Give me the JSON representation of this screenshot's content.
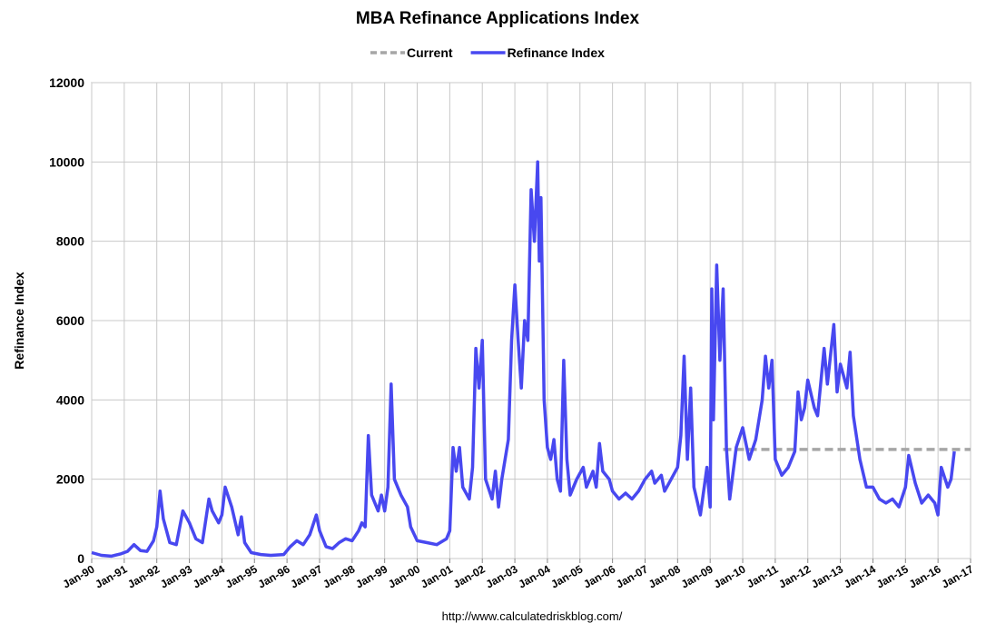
{
  "chart_data": {
    "type": "line",
    "title": "MBA Refinance Applications Index",
    "y_label": "Refinance Index",
    "source": "http://www.calculatedriskblog.com/",
    "xlim": [
      1990,
      2017
    ],
    "ylim": [
      0,
      12000
    ],
    "yticks": [
      0,
      2000,
      4000,
      6000,
      8000,
      10000,
      12000
    ],
    "xticks": [
      {
        "value": 1990,
        "label": "Jan-90"
      },
      {
        "value": 1991,
        "label": "Jan-91"
      },
      {
        "value": 1992,
        "label": "Jan-92"
      },
      {
        "value": 1993,
        "label": "Jan-93"
      },
      {
        "value": 1994,
        "label": "Jan-94"
      },
      {
        "value": 1995,
        "label": "Jan-95"
      },
      {
        "value": 1996,
        "label": "Jan-96"
      },
      {
        "value": 1997,
        "label": "Jan-97"
      },
      {
        "value": 1998,
        "label": "Jan-98"
      },
      {
        "value": 1999,
        "label": "Jan-99"
      },
      {
        "value": 2000,
        "label": "Jan-00"
      },
      {
        "value": 2001,
        "label": "Jan-01"
      },
      {
        "value": 2002,
        "label": "Jan-02"
      },
      {
        "value": 2003,
        "label": "Jan-03"
      },
      {
        "value": 2004,
        "label": "Jan-04"
      },
      {
        "value": 2005,
        "label": "Jan-05"
      },
      {
        "value": 2006,
        "label": "Jan-06"
      },
      {
        "value": 2007,
        "label": "Jan-07"
      },
      {
        "value": 2008,
        "label": "Jan-08"
      },
      {
        "value": 2009,
        "label": "Jan-09"
      },
      {
        "value": 2010,
        "label": "Jan-10"
      },
      {
        "value": 2011,
        "label": "Jan-11"
      },
      {
        "value": 2012,
        "label": "Jan-12"
      },
      {
        "value": 2013,
        "label": "Jan-13"
      },
      {
        "value": 2014,
        "label": "Jan-14"
      },
      {
        "value": 2015,
        "label": "Jan-15"
      },
      {
        "value": 2016,
        "label": "Jan-16"
      },
      {
        "value": 2017,
        "label": "Jan-17"
      }
    ],
    "grid": true,
    "legend": "top",
    "series": [
      {
        "name": "Current",
        "color": "#a6a6a6",
        "dashed": true,
        "x": [
          2009.4,
          2017
        ],
        "values": [
          2750,
          2750
        ]
      },
      {
        "name": "Refinance Index",
        "color": "#4848f0",
        "x": [
          1990.0,
          1990.3,
          1990.6,
          1990.9,
          1991.1,
          1991.3,
          1991.5,
          1991.7,
          1991.9,
          1992.0,
          1992.1,
          1992.2,
          1992.4,
          1992.6,
          1992.8,
          1992.9,
          1993.0,
          1993.2,
          1993.4,
          1993.6,
          1993.7,
          1993.9,
          1994.0,
          1994.1,
          1994.3,
          1994.5,
          1994.6,
          1994.7,
          1994.9,
          1995.2,
          1995.5,
          1995.9,
          1996.1,
          1996.3,
          1996.5,
          1996.7,
          1996.9,
          1997.0,
          1997.2,
          1997.4,
          1997.6,
          1997.8,
          1998.0,
          1998.2,
          1998.3,
          1998.4,
          1998.5,
          1998.6,
          1998.8,
          1998.9,
          1999.0,
          1999.1,
          1999.2,
          1999.3,
          1999.5,
          1999.7,
          1999.8,
          2000.0,
          2000.3,
          2000.6,
          2000.9,
          2001.0,
          2001.1,
          2001.2,
          2001.3,
          2001.4,
          2001.6,
          2001.7,
          2001.8,
          2001.9,
          2002.0,
          2002.1,
          2002.3,
          2002.4,
          2002.5,
          2002.6,
          2002.8,
          2002.9,
          2003.0,
          2003.1,
          2003.2,
          2003.3,
          2003.4,
          2003.5,
          2003.6,
          2003.7,
          2003.75,
          2003.8,
          2003.9,
          2004.0,
          2004.1,
          2004.2,
          2004.3,
          2004.4,
          2004.5,
          2004.6,
          2004.7,
          2004.9,
          2005.1,
          2005.2,
          2005.4,
          2005.5,
          2005.6,
          2005.7,
          2005.9,
          2006.0,
          2006.2,
          2006.4,
          2006.6,
          2006.8,
          2007.0,
          2007.2,
          2007.3,
          2007.5,
          2007.6,
          2007.8,
          2008.0,
          2008.1,
          2008.2,
          2008.3,
          2008.4,
          2008.5,
          2008.7,
          2008.9,
          2009.0,
          2009.05,
          2009.1,
          2009.2,
          2009.3,
          2009.4,
          2009.5,
          2009.6,
          2009.8,
          2010.0,
          2010.2,
          2010.4,
          2010.6,
          2010.7,
          2010.8,
          2010.9,
          2011.0,
          2011.2,
          2011.4,
          2011.6,
          2011.7,
          2011.8,
          2011.9,
          2012.0,
          2012.2,
          2012.3,
          2012.5,
          2012.6,
          2012.8,
          2012.9,
          2013.0,
          2013.2,
          2013.3,
          2013.4,
          2013.6,
          2013.8,
          2014.0,
          2014.2,
          2014.4,
          2014.6,
          2014.8,
          2015.0,
          2015.1,
          2015.3,
          2015.5,
          2015.7,
          2015.9,
          2016.0,
          2016.1,
          2016.3,
          2016.4,
          2016.5
        ],
        "values": [
          150,
          80,
          60,
          120,
          180,
          350,
          200,
          180,
          450,
          800,
          1700,
          1000,
          400,
          350,
          1200,
          1050,
          900,
          500,
          400,
          1500,
          1200,
          900,
          1100,
          1800,
          1300,
          600,
          1050,
          400,
          150,
          100,
          80,
          100,
          300,
          450,
          350,
          600,
          1100,
          700,
          300,
          250,
          400,
          500,
          450,
          700,
          900,
          800,
          3100,
          1600,
          1200,
          1600,
          1200,
          1800,
          4400,
          2000,
          1600,
          1300,
          800,
          450,
          400,
          350,
          500,
          700,
          2800,
          2200,
          2800,
          1800,
          1500,
          2300,
          5300,
          4300,
          5500,
          2000,
          1500,
          2200,
          1300,
          2000,
          3000,
          5500,
          6900,
          5500,
          4300,
          6000,
          5500,
          9300,
          8000,
          10000,
          7500,
          9100,
          4000,
          2800,
          2500,
          3000,
          2000,
          1700,
          5000,
          2500,
          1600,
          2000,
          2300,
          1800,
          2200,
          1800,
          2900,
          2200,
          2000,
          1700,
          1500,
          1650,
          1500,
          1700,
          2000,
          2200,
          1900,
          2100,
          1700,
          2000,
          2300,
          3100,
          5100,
          2500,
          4300,
          1800,
          1100,
          2300,
          1300,
          6800,
          3500,
          7400,
          5000,
          6800,
          2800,
          1500,
          2800,
          3300,
          2500,
          3000,
          4000,
          5100,
          4300,
          5000,
          2500,
          2100,
          2300,
          2700,
          4200,
          3500,
          3800,
          4500,
          3800,
          3600,
          5300,
          4400,
          5900,
          4200,
          4900,
          4300,
          5200,
          3600,
          2500,
          1800,
          1800,
          1500,
          1400,
          1500,
          1300,
          1800,
          2600,
          1900,
          1400,
          1600,
          1400,
          1100,
          2300,
          1800,
          2000,
          2700
        ]
      }
    ]
  }
}
